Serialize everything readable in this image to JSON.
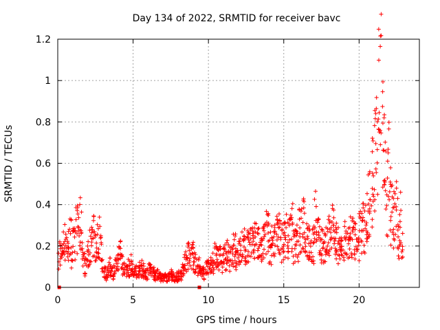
{
  "chart_data": {
    "type": "scatter",
    "title": "Day 134 of 2022, SRMTID for receiver bavc",
    "xlabel": "GPS time / hours",
    "ylabel": "SRMTID / TECUs",
    "xlim": [
      0,
      24
    ],
    "ylim": [
      0,
      1.2
    ],
    "xticks": [
      0,
      5,
      10,
      15,
      20
    ],
    "xtick_labels": [
      "0",
      "5",
      "10",
      "15",
      "20"
    ],
    "yticks": [
      0,
      0.2,
      0.4,
      0.6,
      0.8,
      1.0,
      1.2
    ],
    "ytick_labels": [
      "0",
      "0.2",
      "0.4",
      "0.6",
      "0.8",
      "1",
      "1.2"
    ],
    "grid": true,
    "marker": "+",
    "color": "#ff0000",
    "series": [
      {
        "name": "SRMTID",
        "x": [
          0.05,
          0.1,
          0.2,
          0.3,
          0.4,
          0.5,
          0.6,
          0.7,
          0.8,
          0.9,
          1.0,
          1.1,
          1.2,
          1.3,
          1.4,
          1.5,
          1.6,
          1.7,
          1.8,
          1.9,
          2.0,
          2.1,
          2.2,
          2.3,
          2.4,
          2.5,
          2.6,
          2.7,
          2.8,
          2.9,
          3.0,
          3.1,
          3.2,
          3.3,
          3.4,
          3.5,
          3.6,
          3.7,
          3.8,
          3.9,
          4.0,
          4.1,
          4.2,
          4.3,
          4.4,
          4.5,
          4.6,
          4.7,
          4.8,
          4.9,
          5.0,
          5.2,
          5.4,
          5.6,
          5.8,
          6.0,
          6.2,
          6.4,
          6.6,
          6.8,
          7.0,
          7.2,
          7.4,
          7.6,
          7.8,
          8.0,
          8.2,
          8.4,
          8.6,
          8.8,
          9.0,
          9.2,
          9.4,
          9.6,
          9.8,
          10.0,
          10.2,
          10.4,
          10.6,
          10.8,
          11.0,
          11.2,
          11.4,
          11.6,
          11.8,
          12.0,
          12.2,
          12.4,
          12.6,
          12.8,
          13.0,
          13.2,
          13.4,
          13.6,
          13.8,
          14.0,
          14.2,
          14.4,
          14.6,
          14.8,
          15.0,
          15.2,
          15.4,
          15.6,
          15.8,
          16.0,
          16.2,
          16.4,
          16.6,
          16.8,
          17.0,
          17.2,
          17.4,
          17.6,
          17.8,
          18.0,
          18.2,
          18.4,
          18.6,
          18.8,
          19.0,
          19.2,
          19.4,
          19.6,
          19.8,
          20.0,
          20.2,
          20.4,
          20.6,
          20.8,
          21.0,
          21.1,
          21.2,
          21.3,
          21.4,
          21.5,
          21.6,
          21.7,
          21.8,
          21.9,
          22.0,
          22.1,
          22.2,
          22.3,
          22.4,
          22.5,
          22.6,
          22.7,
          22.8
        ],
        "y": [
          0.12,
          0.18,
          0.15,
          0.2,
          0.22,
          0.25,
          0.19,
          0.21,
          0.24,
          0.17,
          0.2,
          0.23,
          0.28,
          0.32,
          0.3,
          0.26,
          0.18,
          0.12,
          0.1,
          0.14,
          0.16,
          0.2,
          0.22,
          0.24,
          0.2,
          0.18,
          0.22,
          0.25,
          0.2,
          0.12,
          0.08,
          0.07,
          0.06,
          0.08,
          0.1,
          0.09,
          0.07,
          0.08,
          0.1,
          0.12,
          0.15,
          0.18,
          0.14,
          0.1,
          0.09,
          0.08,
          0.1,
          0.09,
          0.11,
          0.08,
          0.07,
          0.08,
          0.09,
          0.08,
          0.07,
          0.08,
          0.07,
          0.06,
          0.06,
          0.05,
          0.05,
          0.05,
          0.06,
          0.05,
          0.05,
          0.06,
          0.08,
          0.12,
          0.15,
          0.16,
          0.12,
          0.1,
          0.08,
          0.07,
          0.09,
          0.1,
          0.12,
          0.15,
          0.14,
          0.13,
          0.15,
          0.16,
          0.14,
          0.18,
          0.15,
          0.17,
          0.2,
          0.18,
          0.22,
          0.2,
          0.24,
          0.2,
          0.18,
          0.22,
          0.26,
          0.2,
          0.22,
          0.24,
          0.26,
          0.22,
          0.25,
          0.24,
          0.3,
          0.2,
          0.22,
          0.28,
          0.3,
          0.25,
          0.22,
          0.2,
          0.35,
          0.25,
          0.2,
          0.18,
          0.24,
          0.28,
          0.3,
          0.22,
          0.2,
          0.18,
          0.22,
          0.2,
          0.24,
          0.22,
          0.2,
          0.26,
          0.3,
          0.35,
          0.4,
          0.5,
          0.6,
          0.7,
          0.75,
          0.9,
          1.1,
          0.8,
          0.7,
          0.5,
          0.45,
          0.6,
          0.5,
          0.35,
          0.3,
          0.4,
          0.45,
          0.3,
          0.25,
          0.35,
          0.2
        ],
        "zeros_x": [
          0.1,
          9.4
        ]
      }
    ]
  }
}
